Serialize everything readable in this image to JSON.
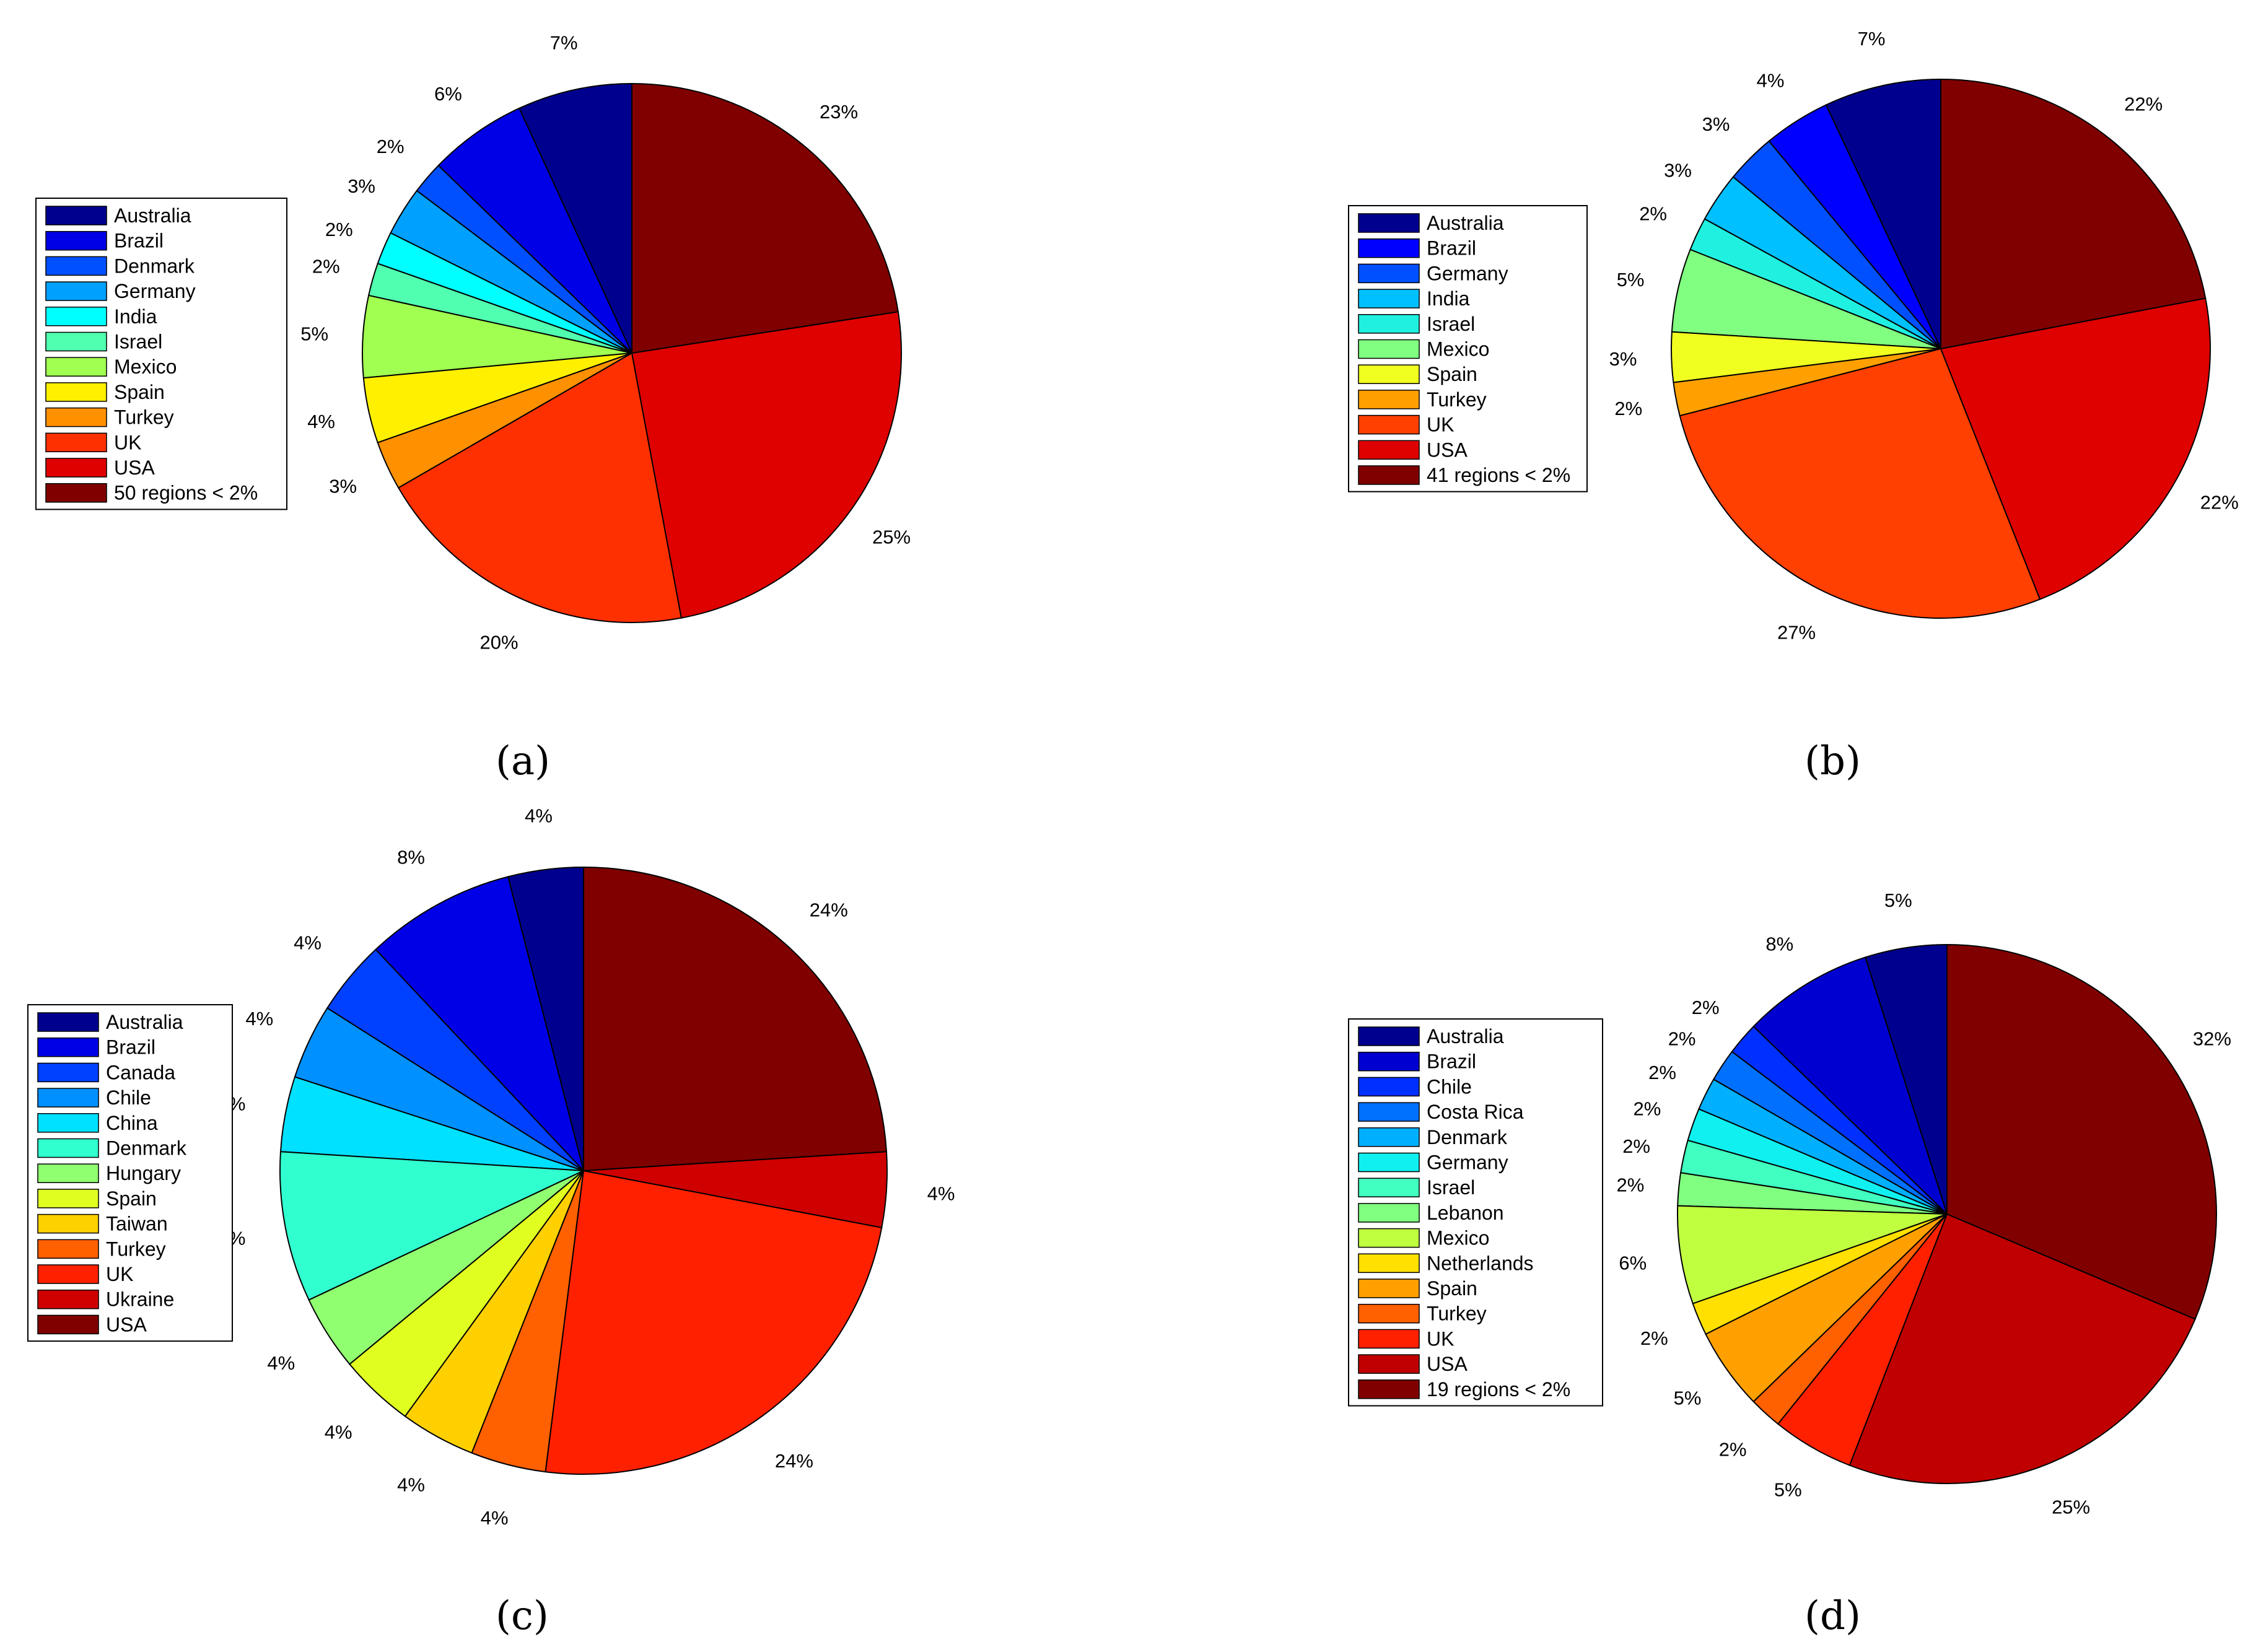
{
  "palette": {
    "Australia": "#00008F",
    "Brazil": "#0000E6",
    "Denmark": "#0050FF",
    "Germany": "#00A0FF",
    "India": "#00FFFF",
    "Israel": "#50FFB0",
    "Mexico": "#A0FF50",
    "Spain": "#FFF000",
    "Turkey": "#FF9000",
    "UK": "#FF3000",
    "USA": "#DF0000",
    "Other": "#800000"
  },
  "chart_data": [
    {
      "type": "pie",
      "label": "a",
      "slices": [
        {
          "name": "Australia",
          "value": 7,
          "label": "7%",
          "color": "#00008F"
        },
        {
          "name": "Brazil",
          "value": 6,
          "label": "6%",
          "color": "#0000E6"
        },
        {
          "name": "Denmark",
          "value": 2,
          "label": "2%",
          "color": "#0050FF"
        },
        {
          "name": "Germany",
          "value": 3,
          "label": "3%",
          "color": "#00A0FF"
        },
        {
          "name": "India",
          "value": 2,
          "label": "2%",
          "color": "#00FFFF"
        },
        {
          "name": "Israel",
          "value": 2,
          "label": "2%",
          "color": "#50FFB0"
        },
        {
          "name": "Mexico",
          "value": 5,
          "label": "5%",
          "color": "#A0FF50"
        },
        {
          "name": "Spain",
          "value": 4,
          "label": "4%",
          "color": "#FFF000"
        },
        {
          "name": "Turkey",
          "value": 3,
          "label": "3%",
          "color": "#FF9000"
        },
        {
          "name": "UK",
          "value": 20,
          "label": "20%",
          "color": "#FF3000"
        },
        {
          "name": "USA",
          "value": 25,
          "label": "25%",
          "color": "#DF0000"
        },
        {
          "name": "50 regions < 2%",
          "value": 23,
          "label": "23%",
          "color": "#800000"
        }
      ]
    },
    {
      "type": "pie",
      "label": "b",
      "slices": [
        {
          "name": "Australia",
          "value": 7,
          "label": "7%",
          "color": "#00008F"
        },
        {
          "name": "Brazil",
          "value": 4,
          "label": "4%",
          "color": "#0000FF"
        },
        {
          "name": "Germany",
          "value": 3,
          "label": "3%",
          "color": "#0050FF"
        },
        {
          "name": "India",
          "value": 3,
          "label": "3%",
          "color": "#00C0FF"
        },
        {
          "name": "Israel",
          "value": 2,
          "label": "2%",
          "color": "#20F0E0"
        },
        {
          "name": "Mexico",
          "value": 5,
          "label": "5%",
          "color": "#80FF80"
        },
        {
          "name": "Spain",
          "value": 3,
          "label": "3%",
          "color": "#F0FF20"
        },
        {
          "name": "Turkey",
          "value": 2,
          "label": "2%",
          "color": "#FFA000"
        },
        {
          "name": "UK",
          "value": 27,
          "label": "27%",
          "color": "#FF4000"
        },
        {
          "name": "USA",
          "value": 22,
          "label": "22%",
          "color": "#DF0000"
        },
        {
          "name": "41 regions < 2%",
          "value": 22,
          "label": "22%",
          "color": "#800000"
        }
      ]
    },
    {
      "type": "pie",
      "label": "c",
      "slices": [
        {
          "name": "Australia",
          "value": 4,
          "label": "4%",
          "color": "#00008F"
        },
        {
          "name": "Brazil",
          "value": 8,
          "label": "8%",
          "color": "#0000E6"
        },
        {
          "name": "Canada",
          "value": 4,
          "label": "4%",
          "color": "#0040FF"
        },
        {
          "name": "Chile",
          "value": 4,
          "label": "4%",
          "color": "#0090FF"
        },
        {
          "name": "China",
          "value": 4,
          "label": "4%",
          "color": "#00E0FF"
        },
        {
          "name": "Denmark",
          "value": 8,
          "label": "8%",
          "color": "#30FFD0"
        },
        {
          "name": "Hungary",
          "value": 4,
          "label": "4%",
          "color": "#90FF70"
        },
        {
          "name": "Spain",
          "value": 4,
          "label": "4%",
          "color": "#E0FF20"
        },
        {
          "name": "Taiwan",
          "value": 4,
          "label": "4%",
          "color": "#FFD000"
        },
        {
          "name": "Turkey",
          "value": 4,
          "label": "4%",
          "color": "#FF6000"
        },
        {
          "name": "UK",
          "value": 24,
          "label": "24%",
          "color": "#FF2000"
        },
        {
          "name": "Ukraine",
          "value": 4,
          "label": "4%",
          "color": "#CF0000"
        },
        {
          "name": "USA",
          "value": 24,
          "label": "24%",
          "color": "#800000"
        }
      ]
    },
    {
      "type": "pie",
      "label": "d",
      "slices": [
        {
          "name": "Australia",
          "value": 5,
          "label": "5%",
          "color": "#00008F"
        },
        {
          "name": "Brazil",
          "value": 8,
          "label": "8%",
          "color": "#0000D0"
        },
        {
          "name": "Chile",
          "value": 2,
          "label": "2%",
          "color": "#0030FF"
        },
        {
          "name": "Costa Rica",
          "value": 2,
          "label": "2%",
          "color": "#0070FF"
        },
        {
          "name": "Denmark",
          "value": 2,
          "label": "2%",
          "color": "#00B0FF"
        },
        {
          "name": "Germany",
          "value": 2,
          "label": "2%",
          "color": "#10F0F0"
        },
        {
          "name": "Israel",
          "value": 2,
          "label": "2%",
          "color": "#40FFC0"
        },
        {
          "name": "Lebanon",
          "value": 2,
          "label": "2%",
          "color": "#80FF80"
        },
        {
          "name": "Mexico",
          "value": 6,
          "label": "6%",
          "color": "#C0FF40"
        },
        {
          "name": "Netherlands",
          "value": 2,
          "label": "2%",
          "color": "#FFE000"
        },
        {
          "name": "Spain",
          "value": 5,
          "label": "5%",
          "color": "#FFA000"
        },
        {
          "name": "Turkey",
          "value": 2,
          "label": "2%",
          "color": "#FF6000"
        },
        {
          "name": "UK",
          "value": 5,
          "label": "5%",
          "color": "#FF2000"
        },
        {
          "name": "USA",
          "value": 25,
          "label": "25%",
          "color": "#C00000"
        },
        {
          "name": "19 regions < 2%",
          "value": 32,
          "label": "32%",
          "color": "#800000"
        }
      ]
    }
  ],
  "subfigure_labels": [
    "(a)",
    "(b)",
    "(c)",
    "(d)"
  ]
}
